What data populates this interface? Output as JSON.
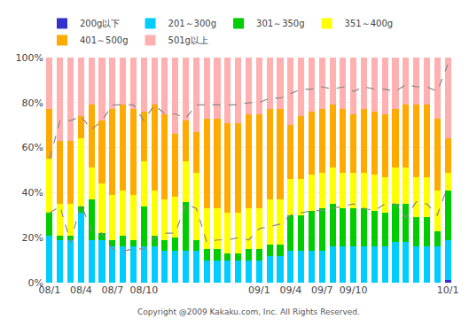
{
  "chart_data": {
    "type": "bar",
    "stacked": true,
    "categories": [
      "08/1",
      null,
      null,
      "08/4",
      null,
      null,
      "08/7",
      null,
      null,
      "08/10",
      null,
      null,
      null,
      null,
      null,
      null,
      null,
      null,
      null,
      null,
      "09/1",
      null,
      null,
      "09/4",
      null,
      null,
      "09/7",
      null,
      null,
      "09/10",
      null,
      null,
      null,
      null,
      null,
      null,
      null,
      null,
      "10/1"
    ],
    "series": [
      {
        "name": "200g以下",
        "color": "#3333CC",
        "values": [
          0,
          0,
          0,
          0,
          0,
          0,
          0,
          0,
          0,
          0,
          0,
          0,
          0,
          0,
          0,
          0,
          0,
          0,
          0,
          0,
          0,
          0,
          0,
          0,
          0,
          0,
          0,
          0,
          0,
          0,
          0,
          0,
          0,
          0,
          0,
          0,
          0,
          0,
          1
        ]
      },
      {
        "name": "201～300g",
        "color": "#00CCFF",
        "values": [
          21,
          19,
          19,
          31,
          19,
          19,
          16,
          16,
          16,
          16,
          16,
          14,
          14,
          14,
          14,
          10,
          10,
          10,
          10,
          10,
          10,
          12,
          12,
          14,
          14,
          14,
          14,
          16,
          16,
          16,
          16,
          16,
          16,
          18,
          18,
          16,
          16,
          16,
          18
        ]
      },
      {
        "name": "301～350g",
        "color": "#00CC00",
        "values": [
          10,
          2,
          2,
          3,
          18,
          3,
          3,
          5,
          3,
          18,
          5,
          5,
          6,
          22,
          5,
          5,
          5,
          3,
          3,
          5,
          5,
          5,
          5,
          16,
          16,
          18,
          19,
          19,
          17,
          17,
          17,
          16,
          15,
          17,
          17,
          13,
          13,
          7,
          22
        ]
      },
      {
        "name": "351～400g",
        "color": "#FFFF00",
        "values": [
          24,
          14,
          14,
          30,
          14,
          22,
          20,
          20,
          20,
          20,
          20,
          18,
          18,
          18,
          30,
          18,
          18,
          18,
          18,
          18,
          18,
          20,
          20,
          16,
          16,
          16,
          16,
          16,
          16,
          16,
          16,
          16,
          16,
          16,
          16,
          18,
          18,
          18,
          8
        ]
      },
      {
        "name": "401～500g",
        "color": "#FFAA00",
        "values": [
          22,
          28,
          28,
          10,
          28,
          28,
          38,
          38,
          38,
          22,
          38,
          38,
          28,
          18,
          18,
          40,
          40,
          40,
          40,
          42,
          42,
          40,
          40,
          24,
          28,
          28,
          28,
          28,
          28,
          26,
          28,
          28,
          28,
          26,
          28,
          32,
          32,
          32,
          15
        ]
      },
      {
        "name": "501g以上",
        "color": "#FFB0B0",
        "values": [
          23,
          37,
          37,
          26,
          21,
          28,
          23,
          21,
          23,
          24,
          21,
          25,
          34,
          28,
          33,
          27,
          27,
          29,
          29,
          25,
          25,
          23,
          23,
          30,
          26,
          24,
          23,
          21,
          23,
          25,
          23,
          24,
          25,
          23,
          21,
          21,
          21,
          27,
          36
        ]
      },
      {
        "type": "line",
        "color": "#888888",
        "line_style": "dashed",
        "values": [
          31,
          34,
          18,
          35,
          23,
          22,
          15,
          14,
          15,
          15,
          20,
          22,
          22,
          35,
          33,
          18,
          19,
          19,
          20,
          19,
          24,
          25,
          26,
          30,
          31,
          32,
          32,
          33,
          34,
          35,
          33,
          32,
          35,
          35,
          29,
          36,
          35,
          30,
          43
        ]
      },
      {
        "type": "line",
        "color": "#888888",
        "line_style": "dashed",
        "values": [
          55,
          72,
          72,
          74,
          68,
          72,
          79,
          79,
          79,
          72,
          79,
          75,
          75,
          73,
          79,
          79,
          79,
          79,
          79,
          80,
          80,
          82,
          82,
          84,
          86,
          86,
          87,
          86,
          87,
          85,
          87,
          86,
          86,
          85,
          88,
          87,
          87,
          85,
          97
        ]
      }
    ],
    "ylim": [
      0,
      100
    ],
    "yticks": [
      {
        "value": 0,
        "label": "0%"
      },
      {
        "value": 20,
        "label": "20%"
      },
      {
        "value": 40,
        "label": "40%"
      },
      {
        "value": 60,
        "label": "60%"
      },
      {
        "value": 80,
        "label": "80%"
      },
      {
        "value": 100,
        "label": "100%"
      }
    ],
    "grid": true,
    "legend": "upper left",
    "annotations": [
      "Copyright @2009 Kakaku.com, Inc. All Rights Reserved."
    ]
  }
}
